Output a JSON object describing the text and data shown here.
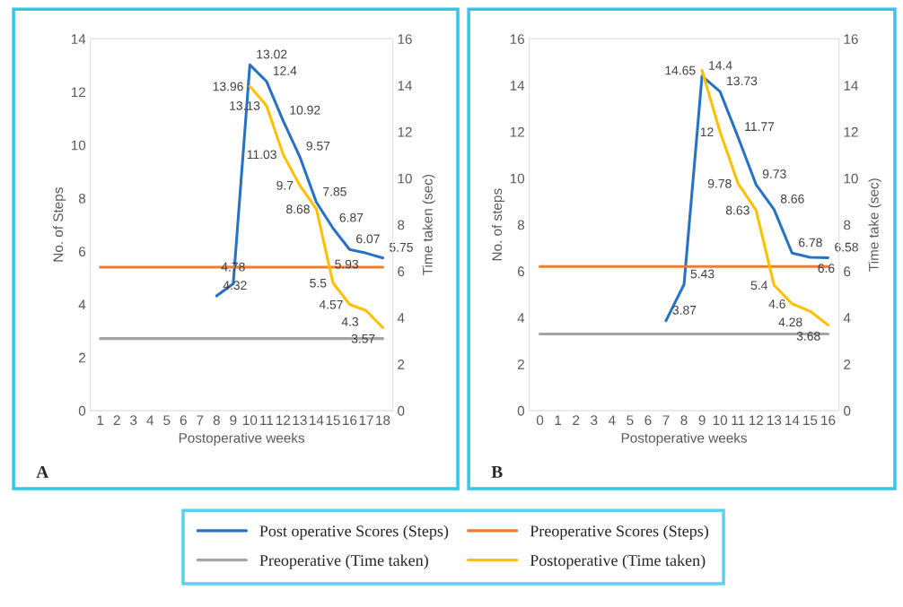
{
  "chart_data": [
    {
      "type": "line",
      "categories": [
        "1",
        "2",
        "3",
        "4",
        "5",
        "6",
        "7",
        "8",
        "9",
        "10",
        "11",
        "12",
        "13",
        "14",
        "15",
        "16",
        "17",
        "18"
      ],
      "xlabel": "Postoperative weeks",
      "ylabel": "No. of Steps",
      "y2label": "Time taken (sec)",
      "ylim": [
        0,
        14
      ],
      "yticks": [
        0,
        2,
        4,
        6,
        8,
        10,
        12,
        14
      ],
      "y2lim": [
        0,
        16
      ],
      "y2ticks": [
        0,
        2,
        4,
        6,
        8,
        10,
        12,
        14,
        16
      ],
      "legend": "bottom",
      "annotations": [
        "A"
      ],
      "series": [
        {
          "name": "Post operative Scores (Steps)",
          "color": "#2872c2",
          "values": [
            null,
            null,
            null,
            null,
            null,
            null,
            null,
            4.32,
            4.78,
            13.02,
            12.4,
            10.92,
            9.57,
            7.85,
            6.87,
            6.07,
            5.93,
            5.75
          ],
          "value_labels": [
            null,
            null,
            null,
            null,
            null,
            null,
            null,
            "4.32",
            "4.78",
            "13.02",
            "12.4",
            "10.92",
            "9.57",
            "7.85",
            "6.87",
            "6.07",
            "5.93",
            "5.75"
          ]
        },
        {
          "name": "Preoperative Scores (Steps)",
          "color": "#ed7d31",
          "values": [
            5.4,
            5.4,
            5.4,
            5.4,
            5.4,
            5.4,
            5.4,
            5.4,
            5.4,
            5.4,
            5.4,
            5.4,
            5.4,
            5.4,
            5.4,
            5.4,
            5.4,
            5.4
          ]
        },
        {
          "name": "Preoperative (Time taken)",
          "color": "#a5a5a5",
          "axis": "y2",
          "values": [
            3.1,
            3.1,
            3.1,
            3.1,
            3.1,
            3.1,
            3.1,
            3.1,
            3.1,
            3.1,
            3.1,
            3.1,
            3.1,
            3.1,
            3.1,
            3.1,
            3.1,
            3.1
          ]
        },
        {
          "name": "Postoperative (Time taken)",
          "color": "#ffc000",
          "axis": "y2",
          "values": [
            null,
            null,
            null,
            null,
            null,
            null,
            null,
            null,
            null,
            13.96,
            13.13,
            11.03,
            9.7,
            8.68,
            5.5,
            4.57,
            4.3,
            3.57
          ],
          "value_labels": [
            null,
            null,
            null,
            null,
            null,
            null,
            null,
            null,
            null,
            "13.96",
            "13.13",
            "11.03",
            "9.7",
            "8.68",
            "5.5",
            "4.57",
            "4.3",
            "3.57"
          ]
        }
      ]
    },
    {
      "type": "line",
      "categories": [
        "0",
        "1",
        "2",
        "3",
        "4",
        "5",
        "6",
        "7",
        "8",
        "9",
        "10",
        "11",
        "12",
        "13",
        "14",
        "15",
        "16"
      ],
      "xlabel": "Postoperative weeks",
      "ylabel": "No. of steps",
      "y2label": "Time take (sec)",
      "ylim": [
        0,
        16
      ],
      "yticks": [
        0,
        2,
        4,
        6,
        8,
        10,
        12,
        14,
        16
      ],
      "y2lim": [
        0,
        16
      ],
      "y2ticks": [
        0,
        2,
        4,
        6,
        8,
        10,
        12,
        14,
        16
      ],
      "annotations": [
        "B"
      ],
      "series": [
        {
          "color": "#2872c2",
          "values": [
            null,
            null,
            null,
            null,
            null,
            null,
            null,
            3.87,
            5.43,
            14.4,
            13.73,
            11.77,
            9.73,
            8.66,
            6.78,
            6.6,
            6.58
          ],
          "value_labels": [
            null,
            null,
            null,
            null,
            null,
            null,
            null,
            "3.87",
            "5.43",
            "14.4",
            "13.73",
            "11.77",
            "9.73",
            "8.66",
            "6.78",
            "6.6",
            "6.58"
          ]
        },
        {
          "color": "#ed7d31",
          "values": [
            6.2,
            6.2,
            6.2,
            6.2,
            6.2,
            6.2,
            6.2,
            6.2,
            6.2,
            6.2,
            6.2,
            6.2,
            6.2,
            6.2,
            6.2,
            6.2,
            6.2
          ]
        },
        {
          "color": "#a5a5a5",
          "axis": "y2",
          "values": [
            3.3,
            3.3,
            3.3,
            3.3,
            3.3,
            3.3,
            3.3,
            3.3,
            3.3,
            3.3,
            3.3,
            3.3,
            3.3,
            3.3,
            3.3,
            3.3,
            3.3
          ]
        },
        {
          "color": "#ffc000",
          "axis": "y2",
          "values": [
            null,
            null,
            null,
            null,
            null,
            null,
            null,
            null,
            null,
            14.65,
            12,
            9.78,
            8.63,
            5.4,
            4.6,
            4.28,
            3.68
          ],
          "value_labels": [
            null,
            null,
            null,
            null,
            null,
            null,
            null,
            null,
            null,
            "14.65",
            "12",
            "9.78",
            "8.63",
            "5.4",
            "4.6",
            "4.28",
            "3.68"
          ]
        }
      ]
    }
  ]
}
